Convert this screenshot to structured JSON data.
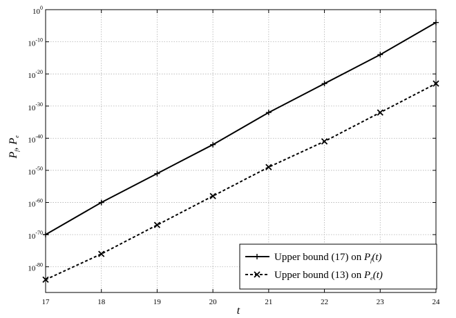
{
  "chart_data": {
    "type": "line",
    "xlabel": "t",
    "ylabel_parts": {
      "p": "P",
      "f": "f",
      "sep": ", ",
      "e": "e"
    },
    "x_ticks": [
      17,
      18,
      19,
      20,
      21,
      22,
      23,
      24
    ],
    "xlim": [
      17,
      24
    ],
    "y_scale": "log",
    "ylim_exponents": [
      -88,
      0
    ],
    "y_ticks": [
      {
        "base": "10",
        "exp": "0",
        "value": 0
      },
      {
        "base": "10",
        "exp": "-10",
        "value": -10
      },
      {
        "base": "10",
        "exp": "-20",
        "value": -20
      },
      {
        "base": "10",
        "exp": "-30",
        "value": -30
      },
      {
        "base": "10",
        "exp": "-40",
        "value": -40
      },
      {
        "base": "10",
        "exp": "-50",
        "value": -50
      },
      {
        "base": "10",
        "exp": "-60",
        "value": -60
      },
      {
        "base": "10",
        "exp": "-70",
        "value": -70
      },
      {
        "base": "10",
        "exp": "-80",
        "value": -80
      }
    ],
    "grid": true,
    "legend_position": "bottom-right",
    "series": [
      {
        "name": "Upper bound (17) on P_f(t)",
        "legend": {
          "text": "Upper bound (17) on ",
          "p": "P",
          "sub": "f",
          "arg": "(t)"
        },
        "color": "#000000",
        "line_style": "solid",
        "marker": "plus",
        "x": [
          17,
          18,
          19,
          20,
          21,
          22,
          23,
          24
        ],
        "log10_y": [
          -70,
          -60,
          -51,
          -42,
          -32,
          -23,
          -14,
          -4
        ]
      },
      {
        "name": "Upper bound (13) on P_e(t)",
        "legend": {
          "text": "Upper bound (13) on ",
          "p": "P",
          "sub": "e",
          "arg": "(t)"
        },
        "color": "#000000",
        "line_style": "dashed",
        "marker": "x",
        "x": [
          17,
          18,
          19,
          20,
          21,
          22,
          23,
          24
        ],
        "log10_y": [
          -84,
          -76,
          -67,
          -58,
          -49,
          -41,
          -32,
          -23
        ]
      }
    ]
  }
}
